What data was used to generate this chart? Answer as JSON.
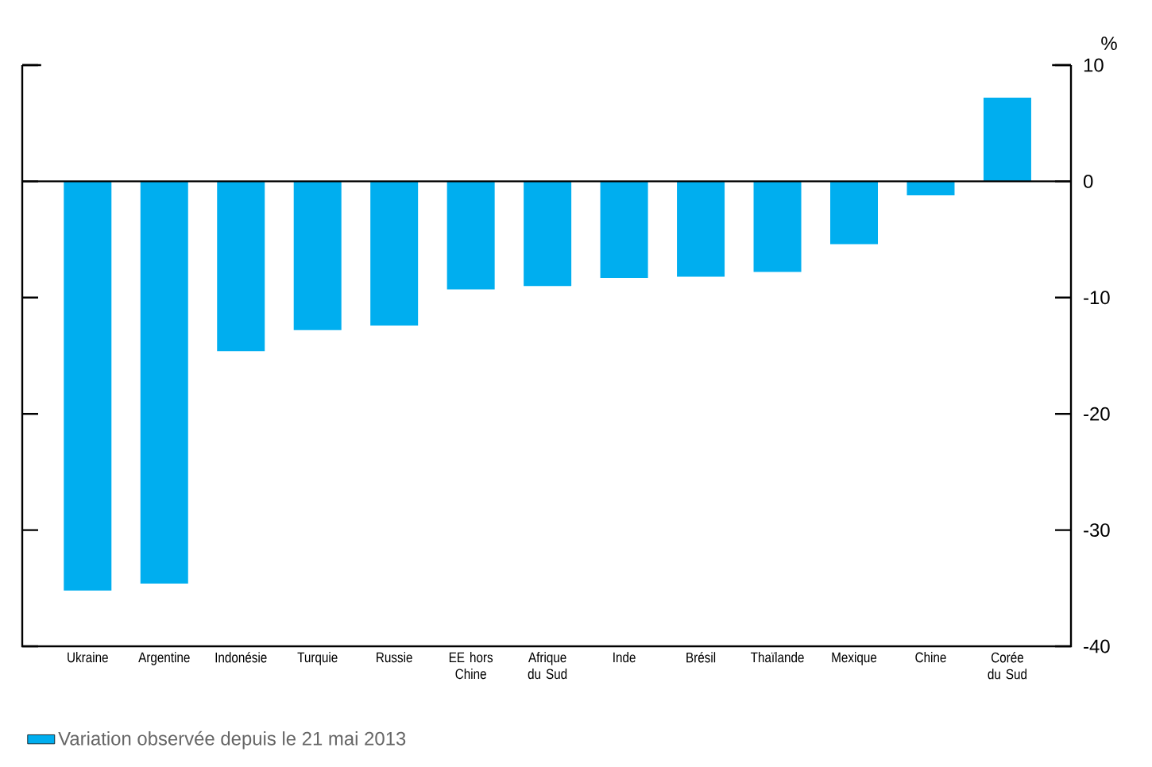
{
  "chart_data": {
    "type": "bar",
    "ylabel": "%",
    "categories": [
      "Ukraine",
      "Argentine",
      "Indonésie",
      "Turquie",
      "Russie",
      "EE hors Chine",
      "Afrique du Sud",
      "Inde",
      "Brésil",
      "Thaïlande",
      "Mexique",
      "Chine",
      "Corée du Sud"
    ],
    "series": [
      {
        "name": "Variation observée depuis le 21 mai 2013",
        "color": "#00aeef",
        "values": [
          -35.2,
          -34.6,
          -14.6,
          -12.8,
          -12.4,
          -9.3,
          -9.0,
          -8.3,
          -8.2,
          -7.8,
          -5.4,
          -1.2,
          7.2
        ]
      }
    ],
    "ylim": [
      -40,
      10
    ],
    "yticks": [
      -40,
      -30,
      -20,
      -10,
      0,
      10
    ],
    "ref_lines": [
      {
        "axis": "y",
        "value": 0
      }
    ],
    "legend": "bottom left"
  }
}
